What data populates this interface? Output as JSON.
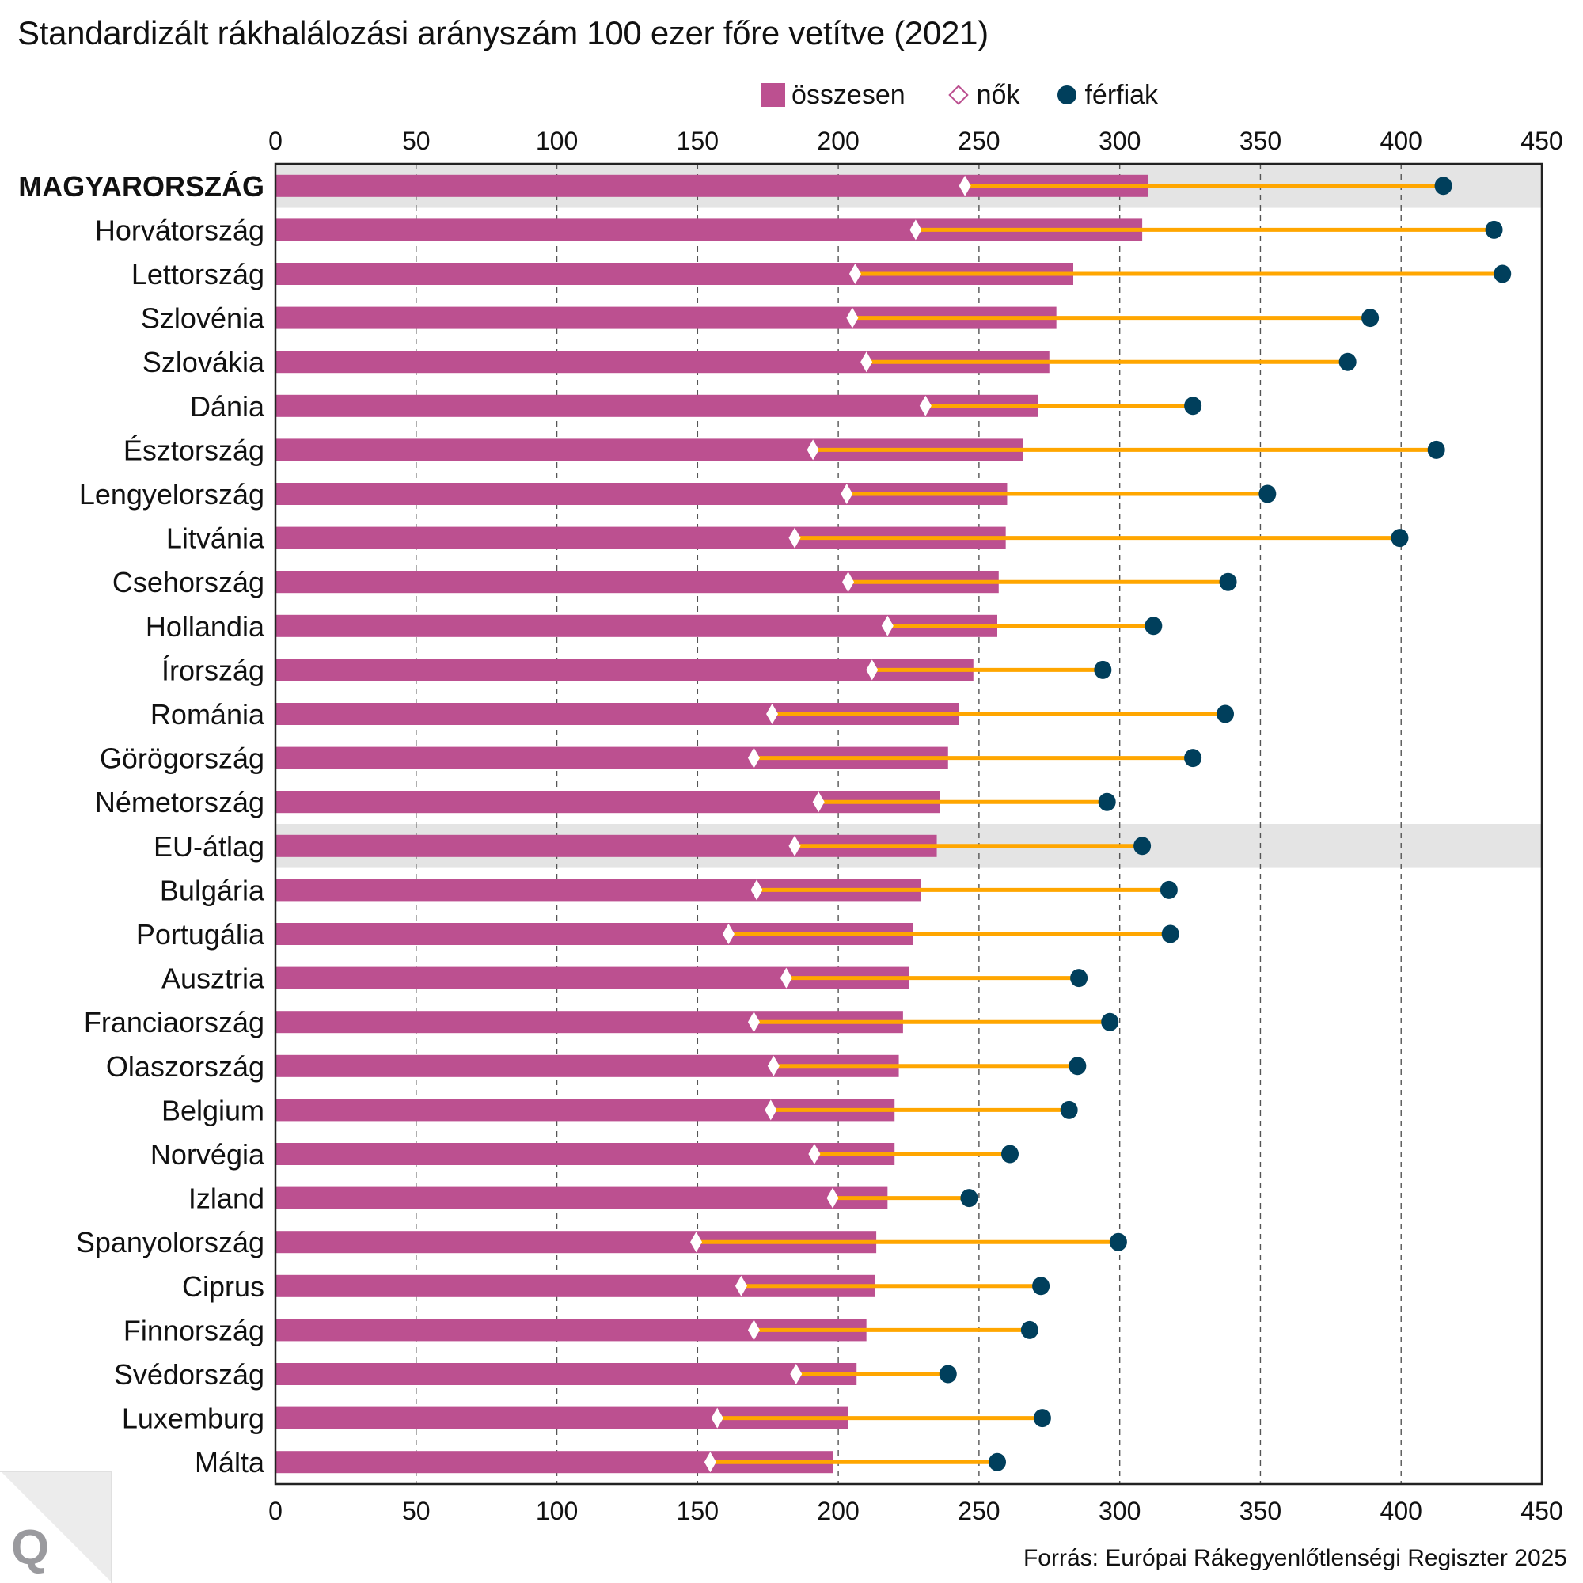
{
  "title": "Standardizált rákhalálozási arányszám 100 ezer főre vetítve (2021)",
  "legend": {
    "total": "összesen",
    "women": "nők",
    "men": "férfiak"
  },
  "source": "Forrás: Európai Rákegyenlőtlenségi Regiszter 2025",
  "logo": "Q",
  "colors": {
    "total_bar": "#bc5090",
    "women_marker": "#ffffff",
    "women_legend_stroke": "#bc5090",
    "men_marker": "#003f5c",
    "range_line": "#ffa600",
    "highlight_band": "#e4e4e4",
    "grid": "#555555"
  },
  "chart_data": {
    "type": "bar",
    "subtype": "horizontal bar with dumbbell overlay",
    "title": "Standardizált rákhalálozási arányszám 100 ezer főre vetítve (2021)",
    "xlabel": "",
    "ylabel": "",
    "xlim": [
      0,
      450
    ],
    "xticks": [
      0,
      50,
      100,
      150,
      200,
      250,
      300,
      350,
      400,
      450
    ],
    "grid": "vertical dashed",
    "legend_position": "top-right",
    "highlighted": [
      "MAGYARORSZÁG",
      "EU-átlag"
    ],
    "bold_categories": [
      "MAGYARORSZÁG"
    ],
    "categories": [
      "MAGYARORSZÁG",
      "Horvátország",
      "Lettország",
      "Szlovénia",
      "Szlovákia",
      "Dánia",
      "Észtország",
      "Lengyelország",
      "Litvánia",
      "Csehország",
      "Hollandia",
      "Írország",
      "Románia",
      "Görögország",
      "Németország",
      "EU-átlag",
      "Bulgária",
      "Portugália",
      "Ausztria",
      "Franciaország",
      "Olaszország",
      "Belgium",
      "Norvégia",
      "Izland",
      "Spanyolország",
      "Ciprus",
      "Finnország",
      "Svédország",
      "Luxemburg",
      "Málta"
    ],
    "series": [
      {
        "name": "összesen",
        "mark": "bar",
        "values": [
          310,
          308,
          283.5,
          277.5,
          275,
          271,
          265.5,
          260,
          259.5,
          257,
          256.5,
          248,
          243,
          239,
          236,
          235,
          229.5,
          226.5,
          225,
          223,
          221.5,
          220,
          220,
          217.5,
          213.5,
          213,
          210,
          206.5,
          203.5,
          198
        ]
      },
      {
        "name": "nők",
        "mark": "diamond",
        "values": [
          245,
          227.5,
          206,
          205,
          210,
          231,
          191,
          203,
          184.5,
          203.5,
          217.5,
          212,
          176.5,
          170,
          193,
          184.5,
          171,
          161,
          181.5,
          170,
          177,
          176,
          191.5,
          198,
          149.5,
          165.5,
          170,
          185,
          157,
          154.5
        ]
      },
      {
        "name": "férfiak",
        "mark": "dot",
        "values": [
          415,
          433,
          436,
          389,
          381,
          326,
          412.5,
          352.5,
          399.5,
          338.5,
          312,
          294,
          337.5,
          326,
          295.5,
          308,
          317.5,
          318,
          285.5,
          296.5,
          285,
          282,
          261,
          246.5,
          299.5,
          272,
          268,
          239,
          272.5,
          256.5
        ]
      }
    ]
  }
}
